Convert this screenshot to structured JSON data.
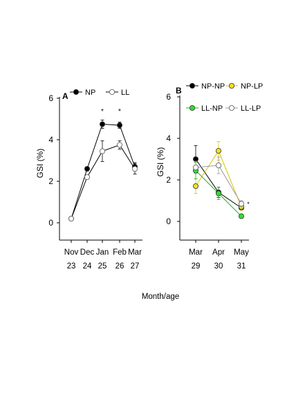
{
  "xlabel_shared": "Month/age",
  "chart_data": [
    {
      "type": "line",
      "panel_label": "A",
      "ylabel": "GSI (%)",
      "ylim": [
        0,
        6
      ],
      "yticks": [
        "0",
        "2",
        "4",
        "6"
      ],
      "x_categories": [
        {
          "month": "Nov",
          "age": "23"
        },
        {
          "month": "Dec",
          "age": "24"
        },
        {
          "month": "Jan",
          "age": "25"
        },
        {
          "month": "Feb",
          "age": "26"
        },
        {
          "month": "Mar",
          "age": "27"
        }
      ],
      "legend": "top",
      "series": [
        {
          "name": "NP",
          "fill": "#000000",
          "points": [
            {
              "x": 0,
              "y": 0.2,
              "err": 0
            },
            {
              "x": 1,
              "y": 2.6,
              "err": 0.1
            },
            {
              "x": 2,
              "y": 4.75,
              "err": 0.2
            },
            {
              "x": 3,
              "y": 4.7,
              "err": 0.15
            },
            {
              "x": 4,
              "y": 2.7,
              "err": 0.2
            }
          ]
        },
        {
          "name": "LL",
          "fill": "#ffffff",
          "points": [
            {
              "x": 0,
              "y": 0.2,
              "err": 0
            },
            {
              "x": 1,
              "y": 2.2,
              "err": 0.1
            },
            {
              "x": 2,
              "y": 3.45,
              "err": 0.5
            },
            {
              "x": 3,
              "y": 3.75,
              "err": 0.2
            },
            {
              "x": 4,
              "y": 2.6,
              "err": 0.25
            }
          ]
        }
      ],
      "significance": [
        {
          "x": 2,
          "label": "*"
        },
        {
          "x": 3,
          "label": "*"
        }
      ]
    },
    {
      "type": "line",
      "panel_label": "B",
      "ylabel": "GSI (%)",
      "ylim": [
        0,
        6
      ],
      "yticks": [
        "0",
        "2",
        "4",
        "6"
      ],
      "x_categories": [
        {
          "month": "Mar",
          "age": "29"
        },
        {
          "month": "Apr",
          "age": "30"
        },
        {
          "month": "May",
          "age": "31"
        }
      ],
      "legend": "top",
      "series": [
        {
          "name": "NP-NP",
          "fill": "#000000",
          "line": "#000000",
          "points": [
            {
              "x": 0,
              "y": 3.0,
              "err": 0.65
            },
            {
              "x": 1,
              "y": 1.4,
              "err": 0.25
            },
            {
              "x": 2,
              "y": 0.65,
              "err": 0.1
            }
          ]
        },
        {
          "name": "NP-LP",
          "fill": "#f2e022",
          "line": "#d8c400",
          "points": [
            {
              "x": 0,
              "y": 1.7,
              "err": 0.35
            },
            {
              "x": 1,
              "y": 3.4,
              "err": 0.45
            },
            {
              "x": 2,
              "y": 0.7,
              "err": 0.15
            }
          ]
        },
        {
          "name": "LL-NP",
          "fill": "#2ee02e",
          "line": "#20b020",
          "points": [
            {
              "x": 0,
              "y": 2.45,
              "err": 0.4
            },
            {
              "x": 1,
              "y": 1.35,
              "err": 0.3
            },
            {
              "x": 2,
              "y": 0.25,
              "err": 0.05
            }
          ]
        },
        {
          "name": "LL-LP",
          "fill": "#ffffff",
          "line": "#999999",
          "points": [
            {
              "x": 0,
              "y": 2.6,
              "err": 0.3
            },
            {
              "x": 1,
              "y": 2.7,
              "err": 0.4
            },
            {
              "x": 2,
              "y": 0.85,
              "err": 0.15
            }
          ]
        }
      ],
      "annotations": [
        {
          "x": 2,
          "label": "*"
        }
      ]
    }
  ]
}
